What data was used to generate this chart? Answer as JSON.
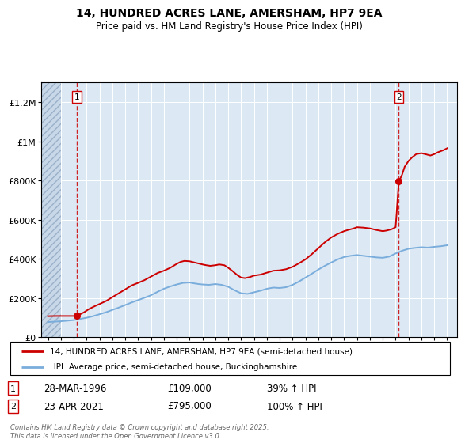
{
  "title": "14, HUNDRED ACRES LANE, AMERSHAM, HP7 9EA",
  "subtitle": "Price paid vs. HM Land Registry's House Price Index (HPI)",
  "ylim": [
    0,
    1300000
  ],
  "xlim": [
    1993.5,
    2025.8
  ],
  "yticks": [
    0,
    200000,
    400000,
    600000,
    800000,
    1000000,
    1200000
  ],
  "ytick_labels": [
    "£0",
    "£200K",
    "£400K",
    "£600K",
    "£800K",
    "£1M",
    "£1.2M"
  ],
  "plot_bg_color": "#dce9f5",
  "hatch_end_year": 1995.0,
  "purchase1_year": 1996.25,
  "purchase1_price": 109000,
  "purchase2_year": 2021.25,
  "purchase2_price": 795000,
  "legend_line1": "14, HUNDRED ACRES LANE, AMERSHAM, HP7 9EA (semi-detached house)",
  "legend_line2": "HPI: Average price, semi-detached house, Buckinghamshire",
  "annotation1_label": "1",
  "annotation1_date": "28-MAR-1996",
  "annotation1_price": "£109,000",
  "annotation1_hpi": "39% ↑ HPI",
  "annotation2_label": "2",
  "annotation2_date": "23-APR-2021",
  "annotation2_price": "£795,000",
  "annotation2_hpi": "100% ↑ HPI",
  "footer": "Contains HM Land Registry data © Crown copyright and database right 2025.\nThis data is licensed under the Open Government Licence v3.0.",
  "red_line_color": "#cc0000",
  "blue_line_color": "#7aaddb",
  "red_years": [
    1994.0,
    1994.3,
    1994.7,
    1995.0,
    1995.3,
    1995.7,
    1996.0,
    1996.25,
    1996.5,
    1996.8,
    1997.2,
    1997.6,
    1998.0,
    1998.5,
    1999.0,
    1999.5,
    2000.0,
    2000.5,
    2001.0,
    2001.5,
    2002.0,
    2002.5,
    2003.0,
    2003.5,
    2004.0,
    2004.3,
    2004.6,
    2005.0,
    2005.5,
    2006.0,
    2006.3,
    2006.6,
    2007.0,
    2007.3,
    2007.7,
    2008.0,
    2008.3,
    2008.7,
    2009.0,
    2009.3,
    2009.7,
    2010.0,
    2010.5,
    2011.0,
    2011.5,
    2012.0,
    2012.5,
    2013.0,
    2013.5,
    2014.0,
    2014.5,
    2015.0,
    2015.5,
    2016.0,
    2016.5,
    2017.0,
    2017.3,
    2017.7,
    2018.0,
    2018.5,
    2019.0,
    2019.5,
    2020.0,
    2020.3,
    2020.7,
    2021.0,
    2021.25,
    2021.5,
    2021.7,
    2022.0,
    2022.3,
    2022.6,
    2023.0,
    2023.3,
    2023.7,
    2024.0,
    2024.3,
    2024.7,
    2025.0
  ],
  "red_values": [
    108000,
    108500,
    109000,
    109000,
    109000,
    109000,
    109000,
    109000,
    118000,
    128000,
    145000,
    158000,
    170000,
    185000,
    205000,
    225000,
    245000,
    265000,
    278000,
    292000,
    310000,
    328000,
    340000,
    355000,
    375000,
    385000,
    390000,
    388000,
    380000,
    372000,
    368000,
    365000,
    368000,
    372000,
    368000,
    355000,
    340000,
    318000,
    305000,
    302000,
    308000,
    315000,
    320000,
    330000,
    340000,
    342000,
    348000,
    360000,
    378000,
    398000,
    425000,
    455000,
    485000,
    510000,
    528000,
    542000,
    548000,
    555000,
    562000,
    560000,
    556000,
    548000,
    542000,
    545000,
    552000,
    562000,
    795000,
    830000,
    870000,
    900000,
    920000,
    935000,
    940000,
    935000,
    928000,
    935000,
    945000,
    955000,
    965000
  ],
  "blue_years": [
    1994.0,
    1994.5,
    1995.0,
    1995.5,
    1996.0,
    1996.5,
    1997.0,
    1997.5,
    1998.0,
    1998.5,
    1999.0,
    1999.5,
    2000.0,
    2000.5,
    2001.0,
    2001.5,
    2002.0,
    2002.5,
    2003.0,
    2003.5,
    2004.0,
    2004.5,
    2005.0,
    2005.3,
    2005.7,
    2006.0,
    2006.5,
    2007.0,
    2007.5,
    2008.0,
    2008.5,
    2009.0,
    2009.5,
    2010.0,
    2010.5,
    2011.0,
    2011.5,
    2012.0,
    2012.5,
    2013.0,
    2013.5,
    2014.0,
    2014.5,
    2015.0,
    2015.5,
    2016.0,
    2016.5,
    2017.0,
    2017.5,
    2018.0,
    2018.5,
    2019.0,
    2019.5,
    2020.0,
    2020.5,
    2021.0,
    2021.5,
    2022.0,
    2022.3,
    2022.7,
    2023.0,
    2023.5,
    2024.0,
    2024.5,
    2025.0
  ],
  "blue_values": [
    78000,
    80000,
    82000,
    85000,
    88000,
    94000,
    100000,
    108000,
    118000,
    128000,
    140000,
    152000,
    165000,
    178000,
    190000,
    202000,
    215000,
    232000,
    248000,
    260000,
    270000,
    278000,
    280000,
    276000,
    272000,
    270000,
    268000,
    272000,
    268000,
    258000,
    240000,
    225000,
    222000,
    230000,
    238000,
    248000,
    254000,
    252000,
    256000,
    268000,
    285000,
    305000,
    325000,
    346000,
    365000,
    382000,
    398000,
    410000,
    416000,
    420000,
    416000,
    412000,
    408000,
    406000,
    412000,
    428000,
    442000,
    452000,
    455000,
    458000,
    460000,
    458000,
    462000,
    465000,
    470000
  ]
}
